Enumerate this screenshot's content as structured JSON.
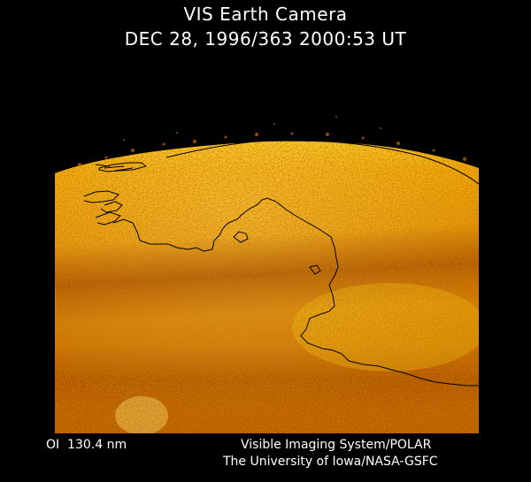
{
  "header": {
    "title": "VIS Earth Camera",
    "timestamp": "DEC 28, 1996/363 2000:53 UT"
  },
  "image": {
    "subject": "earth-limb-aurora",
    "palette": {
      "background": "#000000",
      "dark": "#8a2a00",
      "mid": "#d67800",
      "bright": "#ffd21a",
      "coastline": "#000000"
    }
  },
  "footer": {
    "band": "OI  130.4 nm",
    "instrument": "Visible Imaging System/POLAR",
    "institution": "The University of Iowa/NASA-GSFC"
  }
}
